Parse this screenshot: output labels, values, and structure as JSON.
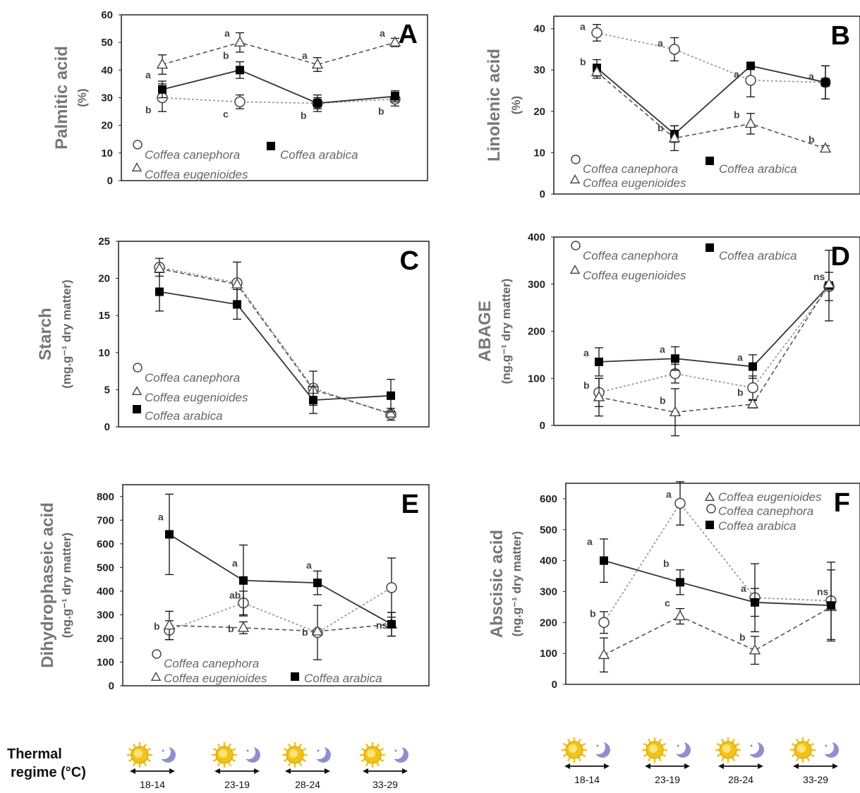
{
  "chart_data": [
    {
      "panel": "A",
      "type": "line",
      "ylabel": "Palmitic acid",
      "yunit": "(%)",
      "ylim": [
        0,
        60
      ],
      "yticks": [
        0,
        10,
        20,
        30,
        40,
        50,
        60
      ],
      "series": [
        {
          "name": "Coffea canephora",
          "marker": "circle",
          "values": [
            30,
            28.5,
            28,
            29.5
          ],
          "err": [
            5,
            2.5,
            2,
            2.5
          ],
          "letters": [
            "b",
            "c",
            "b",
            "b"
          ]
        },
        {
          "name": "Coffea arabica",
          "marker": "square",
          "values": [
            33,
            40,
            28,
            30.5
          ],
          "err": [
            3,
            3,
            3,
            2
          ],
          "letters": [
            "a",
            "b",
            "",
            ""
          ]
        },
        {
          "name": "Coffea eugenioides",
          "marker": "triangle",
          "values": [
            42,
            50,
            42,
            50
          ],
          "err": [
            3.5,
            3.5,
            2.5,
            1.5
          ],
          "letters": [
            "",
            "a",
            "a",
            "a"
          ]
        }
      ]
    },
    {
      "panel": "B",
      "type": "line",
      "ylabel": "Linolenic acid",
      "yunit": "(%)",
      "ylim": [
        0,
        43
      ],
      "yticks": [
        0,
        10,
        20,
        30,
        40
      ],
      "series": [
        {
          "name": "Coffea canephora",
          "marker": "circle",
          "values": [
            39,
            35,
            27.5,
            27
          ],
          "err": [
            2,
            2.8,
            4,
            4
          ],
          "letters": [
            "a",
            "a",
            "a",
            "a"
          ]
        },
        {
          "name": "Coffea arabica",
          "marker": "square",
          "values": [
            30.5,
            14.5,
            31,
            27
          ],
          "err": [
            2,
            2,
            0,
            4
          ],
          "letters": [
            "b",
            "b",
            "",
            ""
          ]
        },
        {
          "name": "Coffea eugenioides",
          "marker": "triangle",
          "values": [
            29.5,
            13.5,
            17,
            11
          ],
          "err": [
            1.5,
            3,
            2.5,
            0.7
          ],
          "letters": [
            "",
            "",
            "b",
            "b"
          ]
        }
      ]
    },
    {
      "panel": "C",
      "type": "line",
      "ylabel": "Starch",
      "yunit": "(mg.g⁻¹ dry matter)",
      "ylim": [
        0,
        25
      ],
      "yticks": [
        0,
        5,
        10,
        15,
        20,
        25
      ],
      "series": [
        {
          "name": "Coffea canephora",
          "marker": "circle",
          "values": [
            21.5,
            19.4,
            5.2,
            1.7
          ],
          "err": [
            1.2,
            2.8,
            2.3,
            0.8
          ],
          "letters": [
            "",
            "",
            "",
            ""
          ]
        },
        {
          "name": "Coffea eugenioides",
          "marker": "triangle",
          "values": [
            21.3,
            19.2,
            5.0,
            1.8
          ],
          "err": [
            0,
            0,
            0,
            0
          ],
          "letters": [
            "",
            "",
            "",
            ""
          ]
        },
        {
          "name": "Coffea arabica",
          "marker": "square",
          "values": [
            18.2,
            16.5,
            3.6,
            4.2
          ],
          "err": [
            2.6,
            2.0,
            1.8,
            2.2
          ],
          "letters": [
            "",
            "",
            "",
            ""
          ]
        }
      ]
    },
    {
      "panel": "D",
      "type": "line",
      "ylabel": "ABAGE",
      "yunit": "(ng.g⁻¹ dry matter)",
      "ylim": [
        0,
        400
      ],
      "yticks": [
        0,
        100,
        200,
        300,
        400
      ],
      "series": [
        {
          "name": "Coffea canephora",
          "marker": "circle",
          "values": [
            70,
            110,
            80,
            295
          ],
          "err": [
            30,
            20,
            25,
            30
          ],
          "letters": [
            "",
            "",
            "",
            ""
          ]
        },
        {
          "name": "Coffea arabica",
          "marker": "square",
          "values": [
            135,
            142,
            125,
            297
          ],
          "err": [
            30,
            25,
            25,
            75
          ],
          "letters": [
            "a",
            "a",
            "a",
            "ns"
          ]
        },
        {
          "name": "Coffea eugenioides",
          "marker": "triangle",
          "values": [
            60,
            28,
            45,
            300
          ],
          "err": [
            40,
            50,
            8,
            0
          ],
          "letters": [
            "b",
            "b",
            "b",
            ""
          ]
        }
      ]
    },
    {
      "panel": "E",
      "type": "line",
      "ylabel": "Dihydrophaseic acid",
      "yunit": "(ng.g⁻¹ dry matter)",
      "ylim": [
        0,
        850
      ],
      "yticks": [
        0,
        100,
        200,
        300,
        400,
        500,
        600,
        700,
        800
      ],
      "series": [
        {
          "name": "Coffea canephora",
          "marker": "circle",
          "values": [
            235,
            350,
            225,
            415
          ],
          "err": [
            40,
            50,
            115,
            125
          ],
          "letters": [
            "",
            "ab",
            "",
            ""
          ]
        },
        {
          "name": "Coffea eugenioides",
          "marker": "triangle",
          "values": [
            255,
            245,
            230,
            260
          ],
          "err": [
            60,
            25,
            0,
            50
          ],
          "letters": [
            "b",
            "b",
            "b",
            "ns"
          ]
        },
        {
          "name": "Coffea arabica",
          "marker": "square",
          "values": [
            640,
            445,
            435,
            260
          ],
          "err": [
            170,
            150,
            50,
            50
          ],
          "letters": [
            "a",
            "a",
            "a",
            ""
          ]
        }
      ]
    },
    {
      "panel": "F",
      "type": "line",
      "ylabel": "Abscisic acid",
      "yunit": "(ng.g⁻¹ dry matter)",
      "ylim": [
        0,
        650
      ],
      "yticks": [
        0,
        100,
        200,
        300,
        400,
        500,
        600
      ],
      "series": [
        {
          "name": "Coffea eugenioides",
          "marker": "triangle",
          "values": [
            95,
            220,
            110,
            250
          ],
          "err": [
            55,
            25,
            45,
            0
          ],
          "letters": [
            "",
            "c",
            "b",
            ""
          ]
        },
        {
          "name": "Coffea canephora",
          "marker": "circle",
          "values": [
            200,
            585,
            280,
            270
          ],
          "err": [
            35,
            70,
            110,
            125
          ],
          "letters": [
            "b",
            "a",
            "a",
            "ns"
          ]
        },
        {
          "name": "Coffea arabica",
          "marker": "square",
          "values": [
            400,
            330,
            265,
            255
          ],
          "err": [
            70,
            40,
            45,
            115
          ],
          "letters": [
            "a",
            "b",
            "",
            ""
          ]
        }
      ]
    }
  ],
  "thermal_regime": {
    "label_line1": "Thermal",
    "label_line2": "regime (°C)",
    "regimes": [
      "18-14",
      "23-19",
      "28-24",
      "33-29"
    ]
  },
  "colors": {
    "canephora_line": "#9a9a9a",
    "arabica_line": "#333333",
    "eugenioides_line": "#555555",
    "sun": "#f2c21b",
    "moon": "#8f8fd0"
  }
}
